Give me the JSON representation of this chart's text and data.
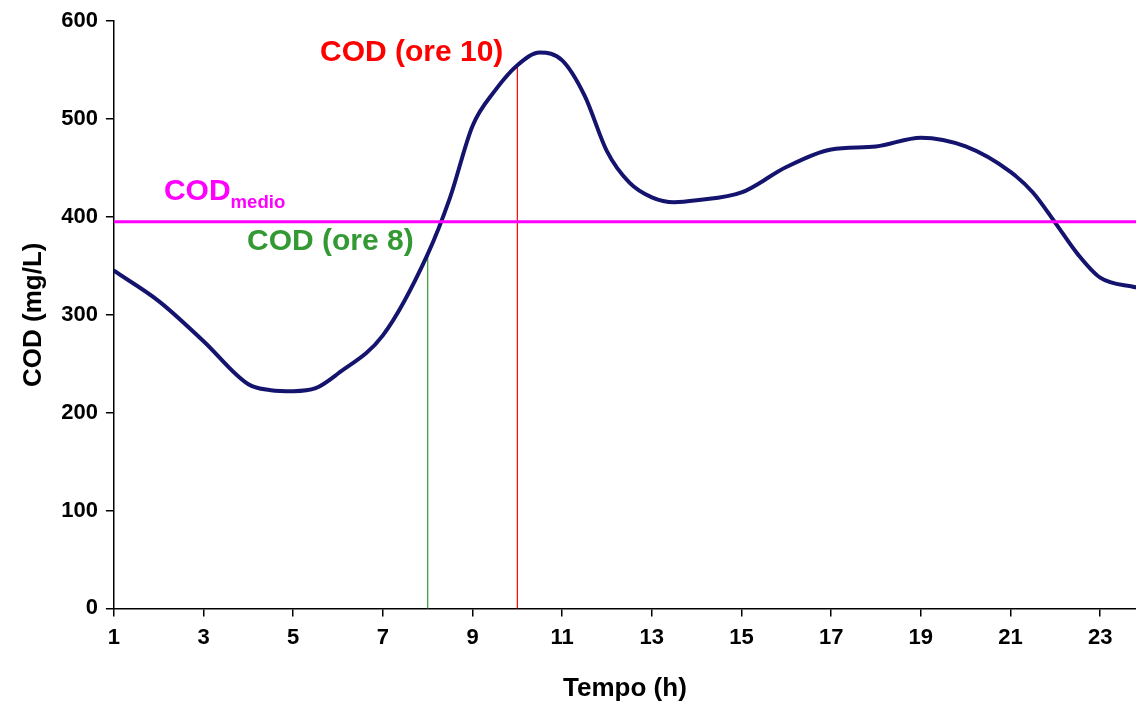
{
  "chart_data": {
    "type": "line",
    "xlabel": "Tempo (h)",
    "ylabel": "COD (mg/L)",
    "xlim": [
      1,
      23.8
    ],
    "xticks": [
      1,
      3,
      5,
      7,
      9,
      11,
      13,
      15,
      17,
      19,
      21,
      23
    ],
    "ylim": [
      0,
      600
    ],
    "yticks": [
      0,
      100,
      200,
      300,
      400,
      500,
      600
    ],
    "grid": false,
    "legend": false,
    "marker": "none",
    "series": [
      {
        "color": "#14146e",
        "x": [
          1,
          2,
          3,
          4,
          4.5,
          5,
          5.5,
          6,
          7,
          8,
          8.5,
          9,
          9.5,
          10,
          10.5,
          11,
          11.5,
          12,
          12.5,
          13,
          13.5,
          14,
          15,
          16,
          17,
          18,
          19,
          20,
          21,
          21.5,
          22,
          22.5,
          23,
          23.8
        ],
        "values": [
          345,
          314,
          273,
          229,
          223,
          222,
          225,
          240,
          279,
          362,
          420,
          493,
          529,
          555,
          568,
          560,
          524,
          467,
          435,
          420,
          415,
          417,
          425,
          451,
          469,
          472,
          481,
          472,
          446,
          425,
          394,
          362,
          338,
          328
        ]
      },
      {
        "color": "#339933",
        "x": [
          8,
          8
        ],
        "values": [
          0,
          362
        ]
      },
      {
        "color": "#ff0000",
        "x": [
          10,
          10
        ],
        "values": [
          0,
          555
        ]
      }
    ],
    "ref_lines": [
      {
        "axis": "y",
        "value": 395,
        "label": "COD$_{medio}$",
        "color": "#ff00ff"
      }
    ],
    "annotations": [
      {
        "text": "COD (ore 10)",
        "x": 10,
        "y": 555
      },
      {
        "text": "COD (ore 8)",
        "x": 8,
        "y": 362
      }
    ]
  }
}
